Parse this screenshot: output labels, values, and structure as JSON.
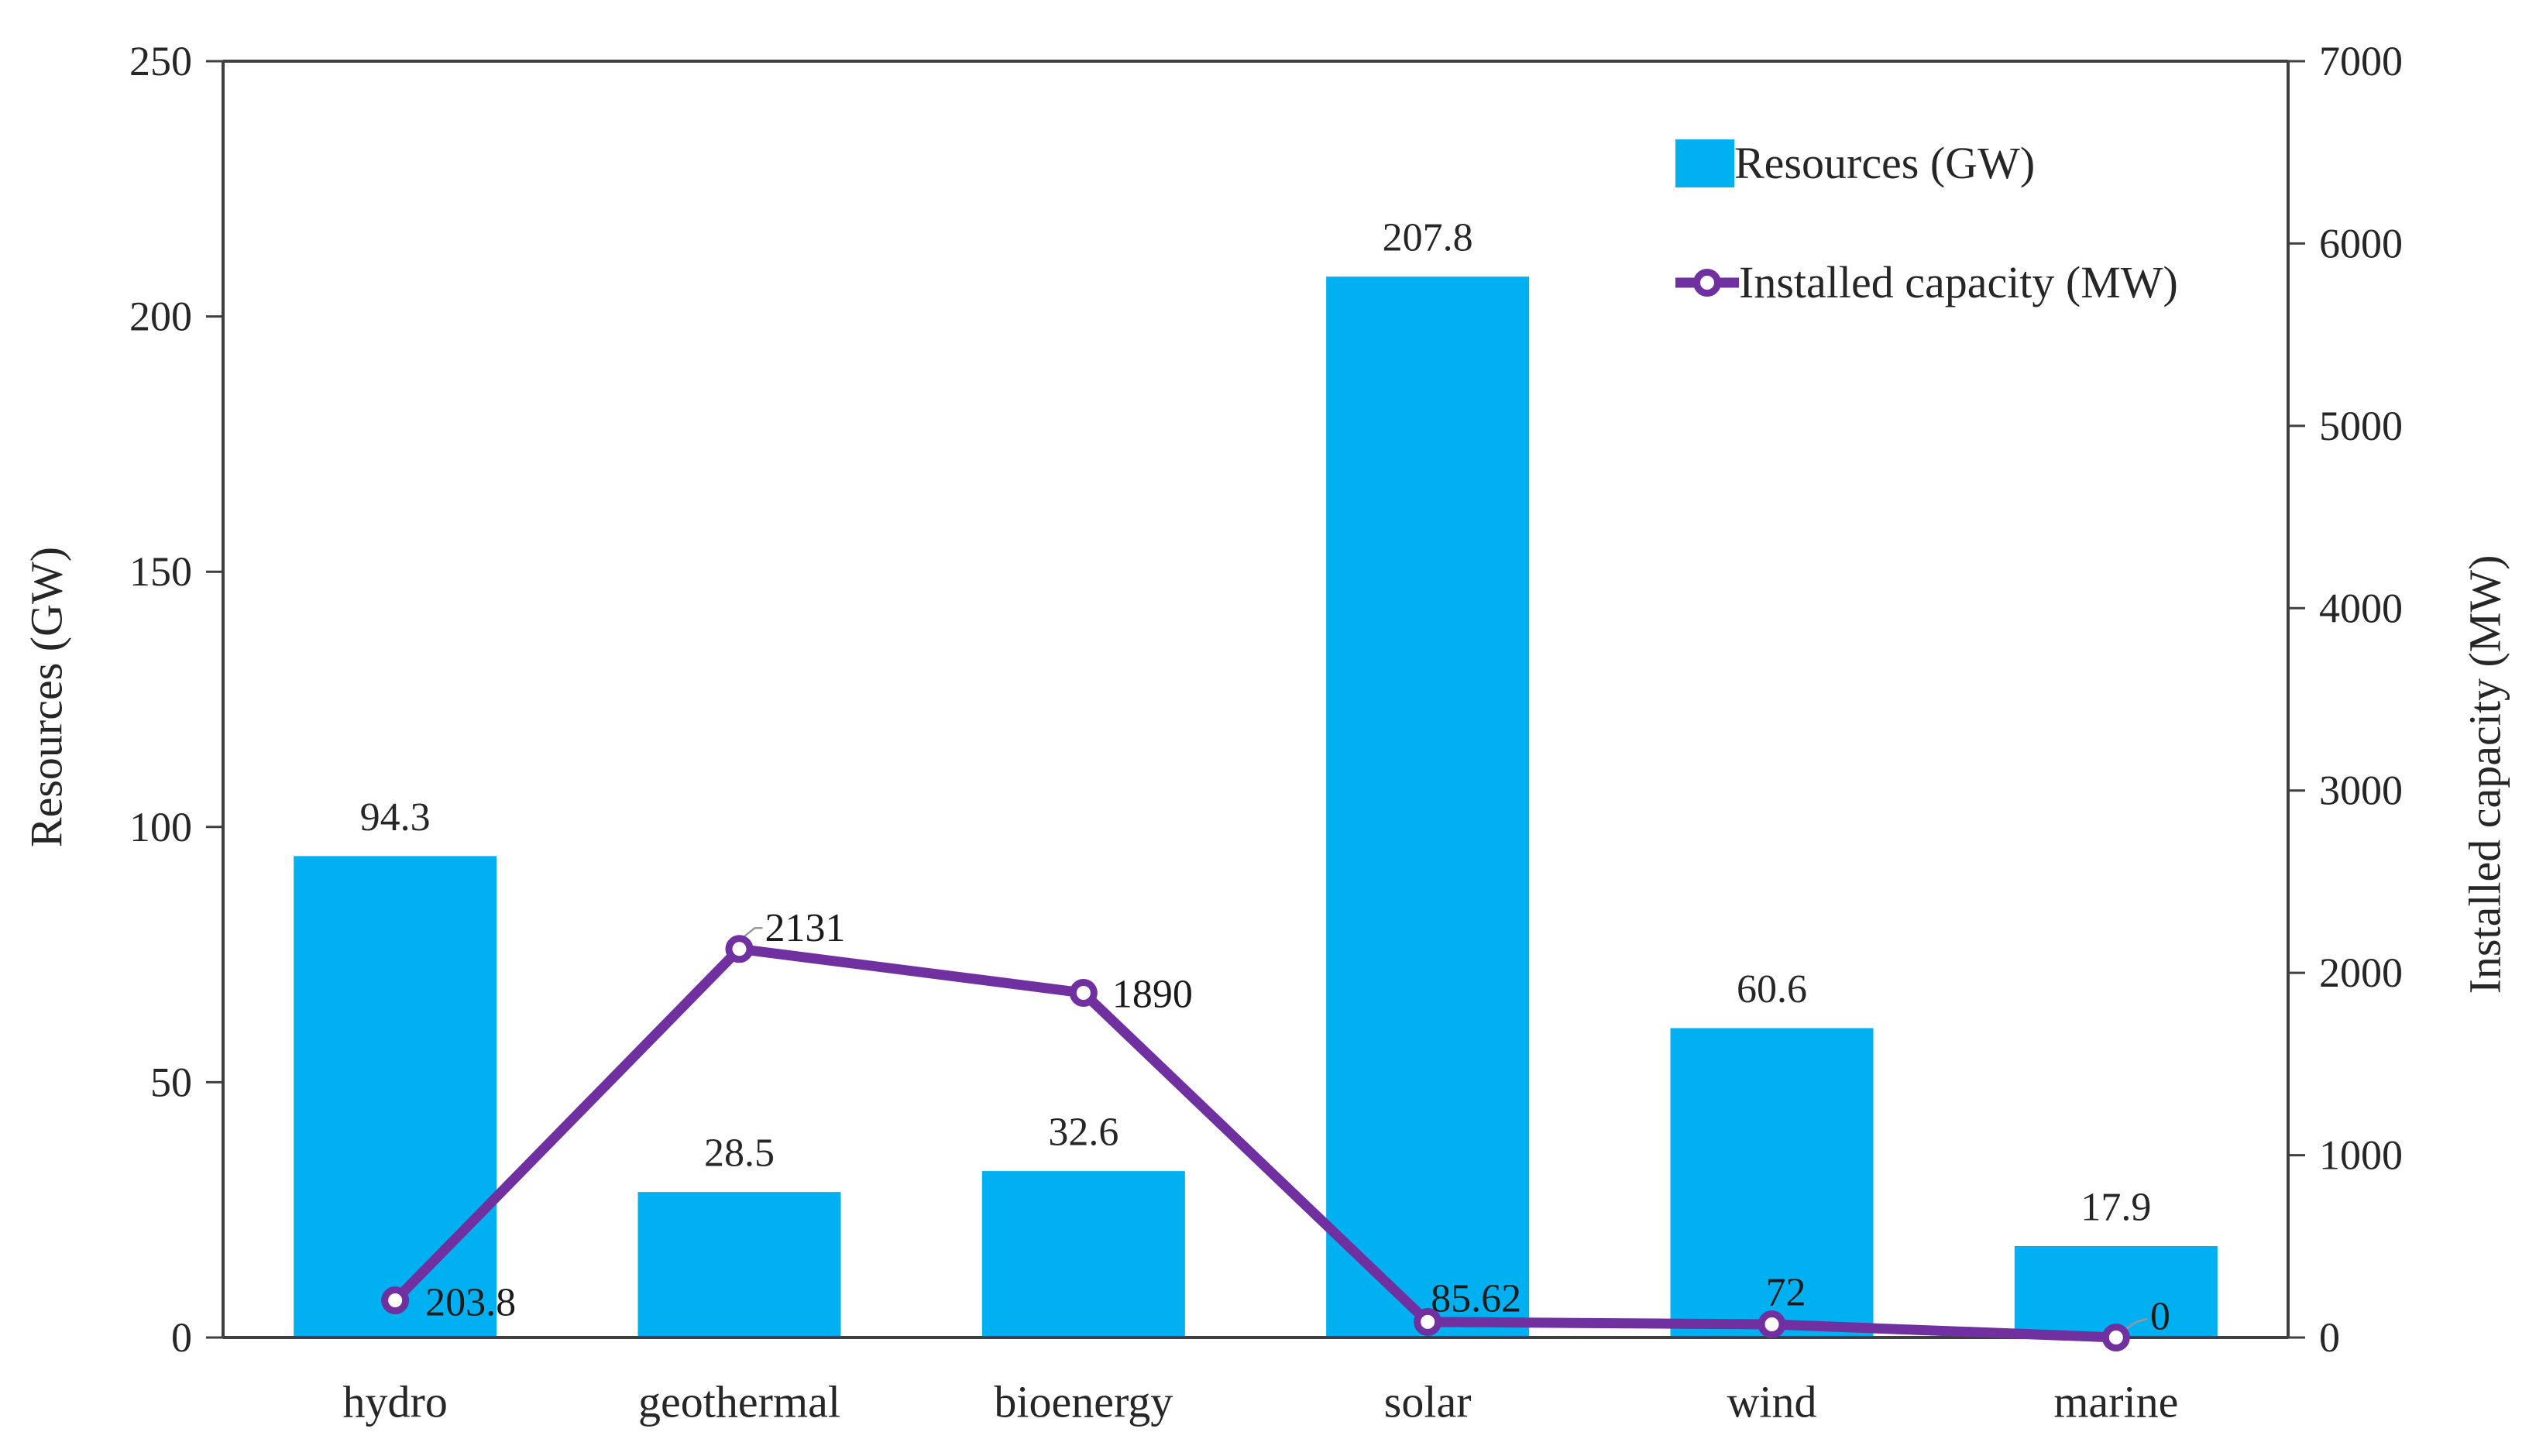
{
  "chart_data": {
    "type": "combo-bar-line",
    "title": "",
    "categories": [
      "hydro",
      "geothermal",
      "bioenergy",
      "solar",
      "wind",
      "marine"
    ],
    "series": [
      {
        "name": "Resources (GW)",
        "chart": "bar",
        "axis": "left",
        "values": [
          94.3,
          28.5,
          32.6,
          207.8,
          60.6,
          17.9
        ],
        "labels": [
          "94.3",
          "28.5",
          "32.6",
          "207.8",
          "60.6",
          "17.9"
        ]
      },
      {
        "name": "Installed capacity (MW)",
        "chart": "line",
        "axis": "right",
        "values": [
          203.8,
          2131,
          1890,
          85.62,
          72,
          0
        ],
        "labels": [
          "203.8",
          "2131",
          "1890",
          "85.62",
          "72",
          "0"
        ]
      }
    ],
    "axes": {
      "left": {
        "title": "Resources (GW)",
        "min": 0,
        "max": 250,
        "step": 50,
        "ticks": [
          "0",
          "50",
          "100",
          "150",
          "200",
          "250"
        ]
      },
      "right": {
        "title": "Installed capacity (MW)",
        "min": 0,
        "max": 7000,
        "step": 1000,
        "ticks": [
          "0",
          "1000",
          "2000",
          "3000",
          "4000",
          "5000",
          "6000",
          "7000"
        ]
      }
    },
    "legend": {
      "position": "top-right-inside",
      "items": [
        "Resources (GW)",
        "Installed capacity (MW)"
      ]
    },
    "grid": false
  },
  "colors": {
    "bar": "#00b0f0",
    "line": "#7030a0",
    "marker_fill": "#ffffff",
    "axis": "#3f3f3f",
    "text": "#262626",
    "leader": "#999999",
    "background": "#ffffff"
  }
}
